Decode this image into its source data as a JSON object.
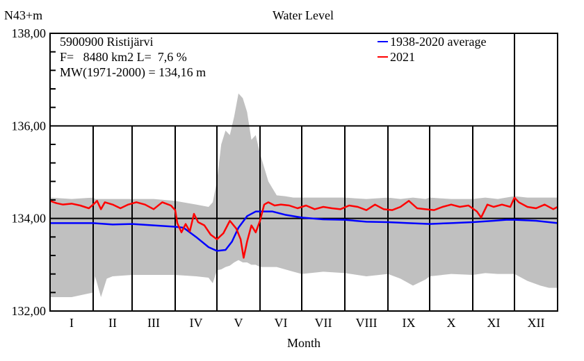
{
  "chart_data": {
    "type": "line",
    "title": "Water Level",
    "ylabel": "N43+m",
    "xlabel": "Month",
    "ylim": [
      132,
      138
    ],
    "yticks_major": [
      132,
      134,
      136,
      138
    ],
    "ytick_labels": [
      "132,00",
      "134,00",
      "136,00",
      "138,00"
    ],
    "yticks_minor_step": 0.4,
    "xlim": [
      0,
      12
    ],
    "categories": [
      "I",
      "II",
      "III",
      "IV",
      "V",
      "VI",
      "VII",
      "VIII",
      "IX",
      "X",
      "XI",
      "XII"
    ],
    "grid": true,
    "annotations": [
      "5900900 Ristijärvi",
      "F=   8480 km2 L=  7,6 %",
      "MW(1971-2000) = 134,16 m"
    ],
    "legend": {
      "position": "top-right",
      "entries": [
        {
          "label": "1938-2020 average",
          "color": "#0000ff"
        },
        {
          "label": "2021",
          "color": "#ff0000"
        }
      ]
    },
    "band": {
      "name": "min-max range",
      "color": "#c0c0c0",
      "x": [
        0,
        0.5,
        1.0,
        1.05,
        1.2,
        1.35,
        1.5,
        2.0,
        2.5,
        3.0,
        3.5,
        3.8,
        3.9,
        4.0,
        4.1,
        4.2,
        4.3,
        4.4,
        4.5,
        4.6,
        4.7,
        4.8,
        4.9,
        5.0,
        5.2,
        5.4,
        5.6,
        5.8,
        6.0,
        6.5,
        7.0,
        7.5,
        8.0,
        8.3,
        8.6,
        8.9,
        9.0,
        9.5,
        10.0,
        10.3,
        10.6,
        11.0,
        11.3,
        11.6,
        11.8,
        12.0
      ],
      "upper": [
        134.45,
        134.42,
        134.45,
        134.42,
        134.42,
        134.42,
        134.42,
        134.42,
        134.42,
        134.38,
        134.3,
        134.25,
        134.35,
        134.8,
        135.6,
        135.9,
        135.8,
        136.2,
        136.7,
        136.6,
        136.3,
        135.7,
        135.8,
        135.4,
        134.8,
        134.5,
        134.48,
        134.45,
        134.45,
        134.45,
        134.45,
        134.42,
        134.45,
        134.42,
        134.45,
        134.42,
        134.45,
        134.42,
        134.42,
        134.45,
        134.42,
        134.48,
        134.45,
        134.45,
        134.45,
        134.45
      ],
      "lower": [
        132.3,
        132.3,
        132.4,
        132.75,
        132.3,
        132.7,
        132.75,
        132.78,
        132.78,
        132.78,
        132.75,
        132.72,
        132.6,
        132.88,
        132.9,
        132.95,
        132.98,
        133.05,
        133.1,
        133.05,
        133.05,
        133.0,
        133.0,
        132.95,
        132.95,
        132.95,
        132.9,
        132.85,
        132.8,
        132.85,
        132.82,
        132.75,
        132.8,
        132.7,
        132.55,
        132.68,
        132.75,
        132.8,
        132.78,
        132.82,
        132.8,
        132.8,
        132.65,
        132.55,
        132.5,
        132.5
      ]
    },
    "series": [
      {
        "name": "1938-2020 average",
        "color": "#0000ff",
        "x": [
          0,
          0.5,
          1.0,
          1.5,
          2.0,
          2.5,
          3.0,
          3.2,
          3.5,
          3.8,
          4.0,
          4.2,
          4.35,
          4.5,
          4.7,
          4.9,
          5.0,
          5.3,
          5.6,
          6.0,
          6.5,
          7.0,
          7.5,
          8.0,
          8.5,
          9.0,
          9.5,
          10.0,
          10.5,
          10.8,
          11.0,
          11.5,
          12.0
        ],
        "values": [
          133.9,
          133.9,
          133.9,
          133.87,
          133.88,
          133.85,
          133.82,
          133.8,
          133.6,
          133.38,
          133.3,
          133.32,
          133.5,
          133.8,
          134.05,
          134.15,
          134.15,
          134.15,
          134.08,
          134.02,
          133.98,
          133.97,
          133.93,
          133.92,
          133.9,
          133.88,
          133.9,
          133.92,
          133.95,
          133.97,
          133.97,
          133.95,
          133.9
        ]
      },
      {
        "name": "2021",
        "color": "#ff0000",
        "x": [
          0,
          0.15,
          0.3,
          0.5,
          0.7,
          0.9,
          1.0,
          1.1,
          1.2,
          1.3,
          1.5,
          1.7,
          1.9,
          2.1,
          2.3,
          2.5,
          2.7,
          2.9,
          3.0,
          3.05,
          3.15,
          3.25,
          3.35,
          3.45,
          3.55,
          3.7,
          3.85,
          4.0,
          4.15,
          4.3,
          4.45,
          4.55,
          4.62,
          4.7,
          4.8,
          4.9,
          5.0,
          5.1,
          5.2,
          5.35,
          5.5,
          5.7,
          5.9,
          6.1,
          6.3,
          6.5,
          6.7,
          6.9,
          7.1,
          7.3,
          7.5,
          7.7,
          7.9,
          8.1,
          8.3,
          8.5,
          8.7,
          8.9,
          9.1,
          9.3,
          9.5,
          9.7,
          9.9,
          10.1,
          10.2,
          10.35,
          10.5,
          10.7,
          10.9,
          11.0,
          11.1,
          11.3,
          11.5,
          11.7,
          11.9,
          12.0
        ],
        "values": [
          134.38,
          134.33,
          134.3,
          134.32,
          134.28,
          134.22,
          134.3,
          134.38,
          134.2,
          134.35,
          134.3,
          134.22,
          134.3,
          134.35,
          134.3,
          134.2,
          134.35,
          134.28,
          134.18,
          133.9,
          133.7,
          133.88,
          133.72,
          134.1,
          133.92,
          133.85,
          133.65,
          133.55,
          133.68,
          133.95,
          133.78,
          133.55,
          133.15,
          133.5,
          133.85,
          133.7,
          133.95,
          134.3,
          134.35,
          134.28,
          134.3,
          134.28,
          134.22,
          134.28,
          134.2,
          134.25,
          134.22,
          134.2,
          134.28,
          134.25,
          134.18,
          134.3,
          134.2,
          134.18,
          134.25,
          134.38,
          134.22,
          134.2,
          134.18,
          134.25,
          134.3,
          134.25,
          134.28,
          134.15,
          134.02,
          134.3,
          134.25,
          134.3,
          134.25,
          134.45,
          134.35,
          134.25,
          134.22,
          134.3,
          134.2,
          134.25
        ]
      }
    ]
  }
}
